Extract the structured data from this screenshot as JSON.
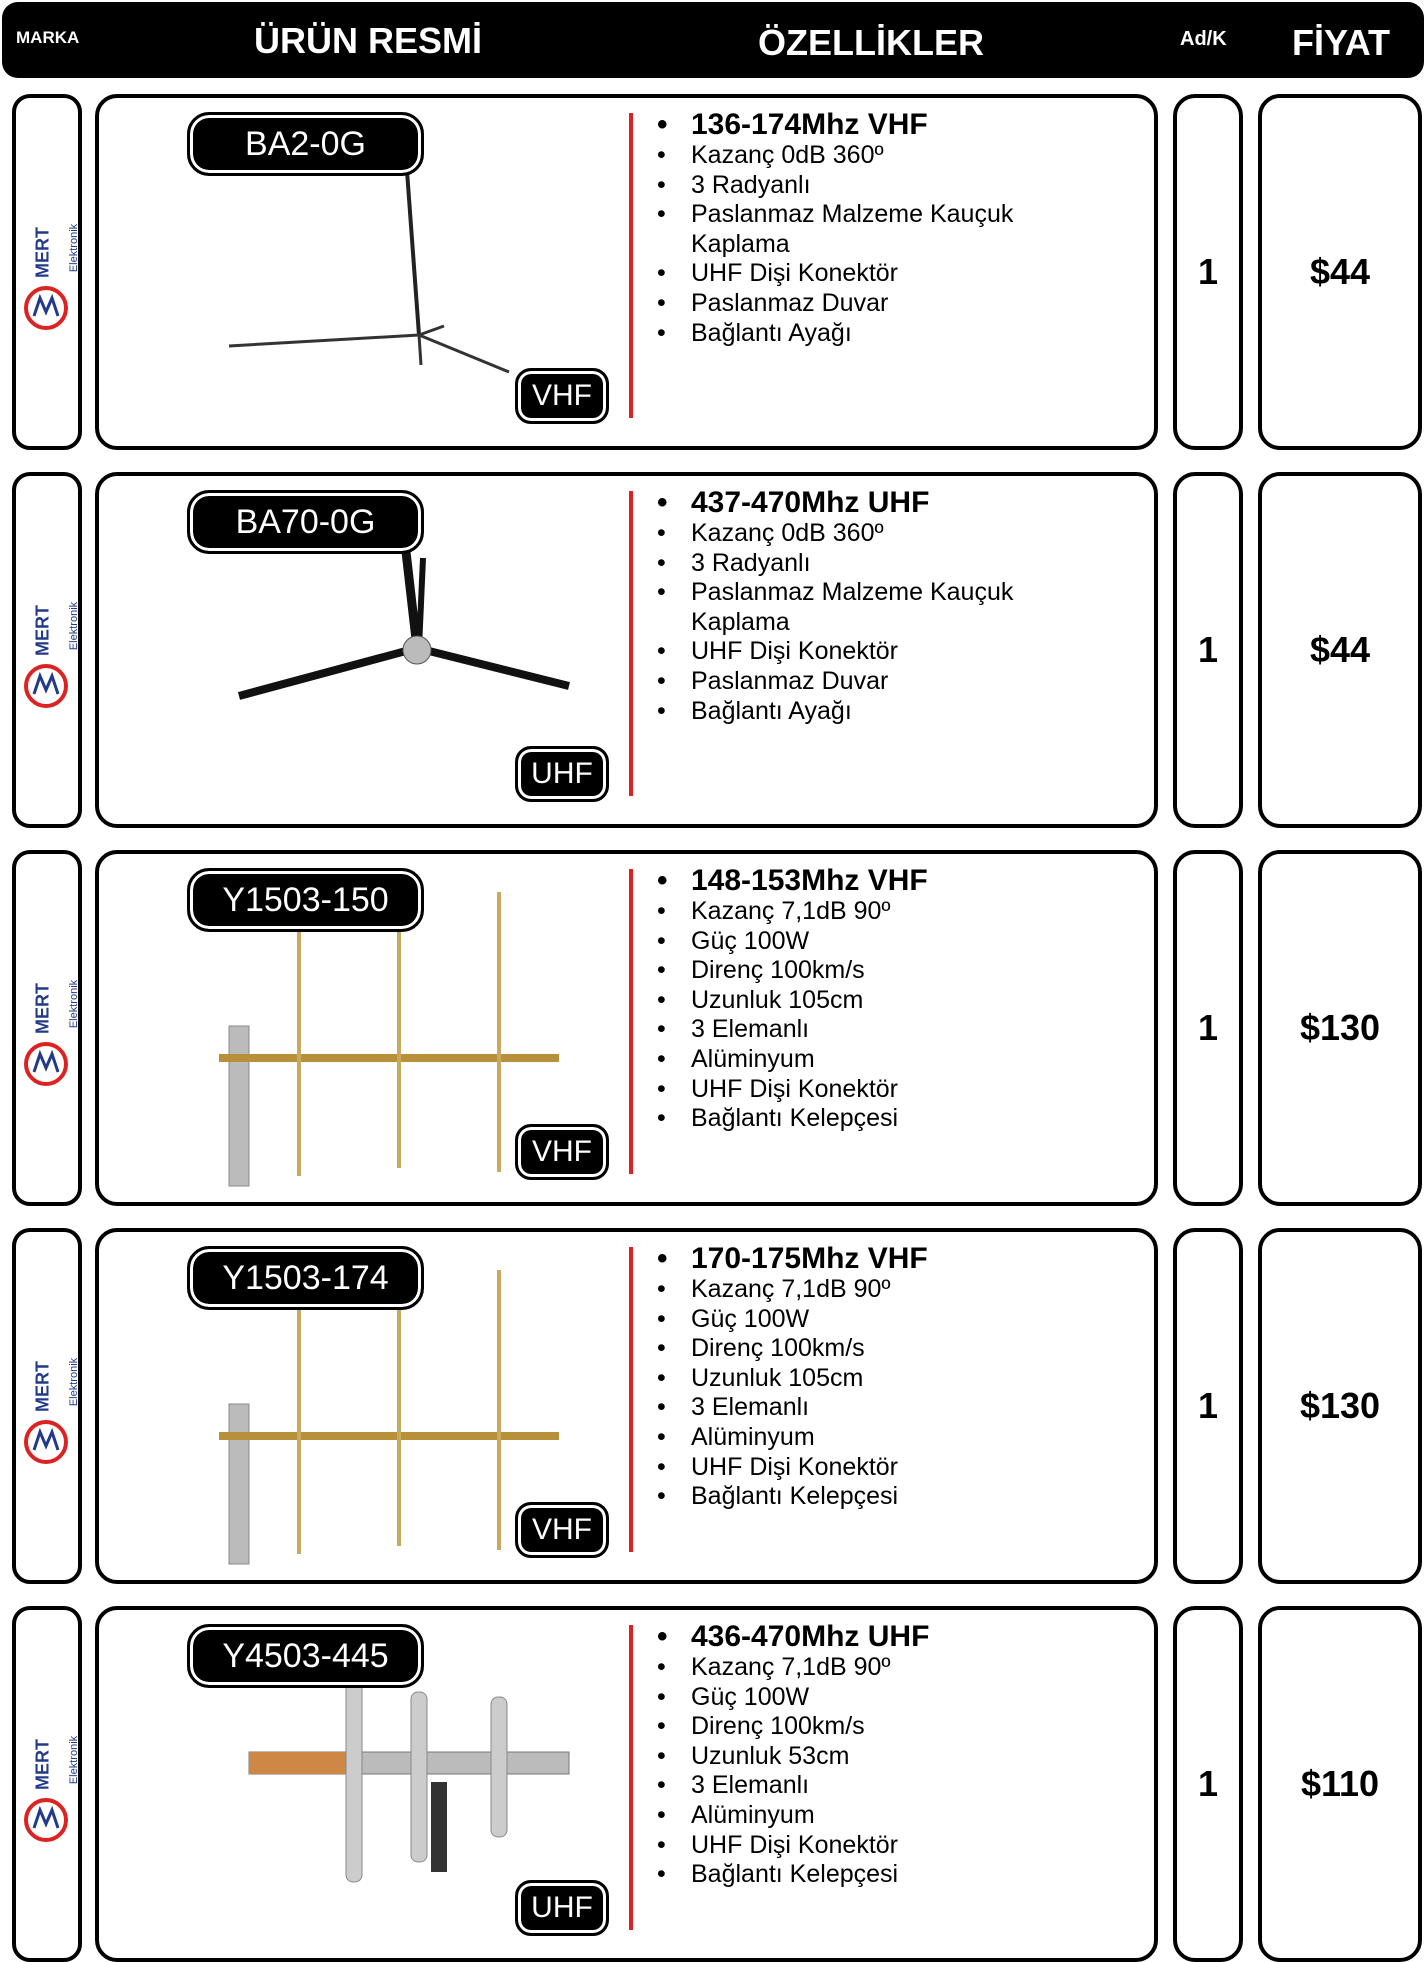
{
  "header": {
    "brand": "MARKA",
    "image": "ÜRÜN RESMİ",
    "features": "ÖZELLİKLER",
    "qty": "Ad/K",
    "price": "FİYAT"
  },
  "brand": {
    "name": "MERT",
    "sub": "Elektronik"
  },
  "rows": [
    {
      "model": "BA2-0G",
      "band": "VHF",
      "features": [
        "136-174Mhz VHF",
        "Kazanç 0dB 360º",
        "3 Radyanlı",
        "Paslanmaz Malzeme Kauçuk Kaplama",
        "UHF Dişi Konektör",
        "Paslanmaz Duvar",
        "Bağlantı Ayağı"
      ],
      "qty": "1",
      "price": "$44"
    },
    {
      "model": "BA70-0G",
      "band": "UHF",
      "features": [
        "437-470Mhz UHF",
        "Kazanç 0dB 360º",
        "3 Radyanlı",
        "Paslanmaz Malzeme Kauçuk Kaplama",
        "UHF Dişi Konektör",
        "Paslanmaz Duvar",
        "Bağlantı Ayağı"
      ],
      "qty": "1",
      "price": "$44"
    },
    {
      "model": "Y1503-150",
      "band": "VHF",
      "features": [
        "148-153Mhz VHF",
        "Kazanç 7,1dB 90º",
        "Güç 100W",
        "Direnç 100km/s",
        "Uzunluk 105cm",
        "3 Elemanlı",
        "Alüminyum",
        "UHF Dişi Konektör",
        "Bağlantı Kelepçesi"
      ],
      "qty": "1",
      "price": "$130"
    },
    {
      "model": "Y1503-174",
      "band": "VHF",
      "features": [
        "170-175Mhz VHF",
        "Kazanç 7,1dB 90º",
        "Güç 100W",
        "Direnç 100km/s",
        "Uzunluk 105cm",
        "3 Elemanlı",
        "Alüminyum",
        "UHF Dişi Konektör",
        "Bağlantı Kelepçesi"
      ],
      "qty": "1",
      "price": "$130"
    },
    {
      "model": "Y4503-445",
      "band": "UHF",
      "features": [
        "436-470Mhz UHF",
        "Kazanç 7,1dB 90º",
        "Güç 100W",
        "Direnç 100km/s",
        "Uzunluk 53cm",
        "3 Elemanlı",
        "Alüminyum",
        "UHF Dişi Konektör",
        "Bağlantı Kelepçesi"
      ],
      "qty": "1",
      "price": "$110"
    }
  ]
}
